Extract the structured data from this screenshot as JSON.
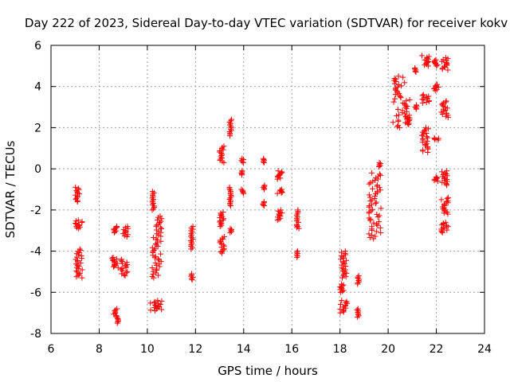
{
  "chart_data": {
    "type": "scatter",
    "title": "Day 222 of 2023, Sidereal Day-to-day VTEC variation (SDTVAR) for receiver kokv",
    "xlabel": "GPS time / hours",
    "ylabel": "SDTVAR / TECUs",
    "xlim": [
      6,
      24
    ],
    "ylim": [
      -8,
      6
    ],
    "xticks": [
      6,
      8,
      10,
      12,
      14,
      16,
      18,
      20,
      22,
      24
    ],
    "yticks": [
      -8,
      -6,
      -4,
      -2,
      0,
      2,
      4,
      6
    ],
    "grid": true,
    "marker": "+",
    "series_color": "#ff0000",
    "clusters": [
      {
        "x": [
          7.0,
          7.2
        ],
        "y": [
          -1.6,
          -0.9
        ]
      },
      {
        "x": [
          7.0,
          7.3
        ],
        "y": [
          -2.9,
          -2.5
        ]
      },
      {
        "x": [
          7.0,
          7.3
        ],
        "y": [
          -5.3,
          -3.9
        ]
      },
      {
        "x": [
          8.6,
          8.8
        ],
        "y": [
          -3.1,
          -2.8
        ]
      },
      {
        "x": [
          8.5,
          8.8
        ],
        "y": [
          -4.8,
          -4.3
        ]
      },
      {
        "x": [
          8.6,
          8.8
        ],
        "y": [
          -7.5,
          -6.8
        ]
      },
      {
        "x": [
          9.0,
          9.2
        ],
        "y": [
          -3.3,
          -2.8
        ]
      },
      {
        "x": [
          8.9,
          9.2
        ],
        "y": [
          -5.2,
          -4.4
        ]
      },
      {
        "x": [
          10.2,
          10.3
        ],
        "y": [
          -2.0,
          -1.1
        ]
      },
      {
        "x": [
          10.2,
          10.6
        ],
        "y": [
          -5.3,
          -2.3
        ]
      },
      {
        "x": [
          10.1,
          10.6
        ],
        "y": [
          -6.9,
          -6.4
        ]
      },
      {
        "x": [
          11.8,
          11.9
        ],
        "y": [
          -3.9,
          -2.8
        ]
      },
      {
        "x": [
          11.8,
          11.9
        ],
        "y": [
          -5.4,
          -5.1
        ]
      },
      {
        "x": [
          13.0,
          13.2
        ],
        "y": [
          0.3,
          1.1
        ]
      },
      {
        "x": [
          13.0,
          13.2
        ],
        "y": [
          -2.8,
          -2.1
        ]
      },
      {
        "x": [
          13.0,
          13.2
        ],
        "y": [
          -4.1,
          -3.3
        ]
      },
      {
        "x": [
          13.4,
          13.5
        ],
        "y": [
          1.6,
          2.4
        ]
      },
      {
        "x": [
          13.4,
          13.5
        ],
        "y": [
          -1.8,
          -0.9
        ]
      },
      {
        "x": [
          13.4,
          13.5
        ],
        "y": [
          -3.1,
          -2.9
        ]
      },
      {
        "x": [
          13.9,
          14.0
        ],
        "y": [
          0.3,
          0.5
        ]
      },
      {
        "x": [
          13.9,
          14.0
        ],
        "y": [
          -0.3,
          -0.1
        ]
      },
      {
        "x": [
          13.9,
          14.0
        ],
        "y": [
          -1.2,
          -1.0
        ]
      },
      {
        "x": [
          14.8,
          14.9
        ],
        "y": [
          0.3,
          0.5
        ]
      },
      {
        "x": [
          14.8,
          14.9
        ],
        "y": [
          -1.0,
          -0.8
        ]
      },
      {
        "x": [
          14.8,
          14.9
        ],
        "y": [
          -1.8,
          -1.6
        ]
      },
      {
        "x": [
          15.4,
          15.6
        ],
        "y": [
          -0.5,
          -0.1
        ]
      },
      {
        "x": [
          15.4,
          15.6
        ],
        "y": [
          -1.2,
          -1.0
        ]
      },
      {
        "x": [
          15.4,
          15.6
        ],
        "y": [
          -2.5,
          -2.0
        ]
      },
      {
        "x": [
          16.2,
          16.3
        ],
        "y": [
          -2.6,
          -2.0
        ]
      },
      {
        "x": [
          16.2,
          16.3
        ],
        "y": [
          -2.9,
          -2.7
        ]
      },
      {
        "x": [
          16.2,
          16.3
        ],
        "y": [
          -4.3,
          -4.0
        ]
      },
      {
        "x": [
          18.0,
          18.3
        ],
        "y": [
          -5.3,
          -4.0
        ]
      },
      {
        "x": [
          18.0,
          18.2
        ],
        "y": [
          -6.0,
          -5.6
        ]
      },
      {
        "x": [
          18.0,
          18.3
        ],
        "y": [
          -7.0,
          -6.4
        ]
      },
      {
        "x": [
          18.7,
          18.8
        ],
        "y": [
          -5.6,
          -5.2
        ]
      },
      {
        "x": [
          18.7,
          18.8
        ],
        "y": [
          -7.2,
          -6.8
        ]
      },
      {
        "x": [
          19.2,
          19.7
        ],
        "y": [
          -3.4,
          -0.2
        ]
      },
      {
        "x": [
          19.6,
          19.7
        ],
        "y": [
          0.1,
          0.3
        ]
      },
      {
        "x": [
          20.2,
          20.9
        ],
        "y": [
          2.0,
          4.5
        ]
      },
      {
        "x": [
          20.7,
          20.9
        ],
        "y": [
          2.2,
          2.6
        ]
      },
      {
        "x": [
          21.1,
          21.2
        ],
        "y": [
          4.7,
          4.9
        ]
      },
      {
        "x": [
          21.1,
          21.2
        ],
        "y": [
          2.9,
          3.1
        ]
      },
      {
        "x": [
          21.4,
          21.7
        ],
        "y": [
          5.0,
          5.5
        ]
      },
      {
        "x": [
          21.4,
          21.7
        ],
        "y": [
          3.2,
          3.6
        ]
      },
      {
        "x": [
          21.4,
          21.7
        ],
        "y": [
          0.8,
          2.0
        ]
      },
      {
        "x": [
          21.9,
          22.1
        ],
        "y": [
          5.0,
          5.3
        ]
      },
      {
        "x": [
          21.9,
          22.1
        ],
        "y": [
          3.8,
          4.1
        ]
      },
      {
        "x": [
          21.9,
          22.1
        ],
        "y": [
          1.4,
          1.5
        ]
      },
      {
        "x": [
          21.9,
          22.1
        ],
        "y": [
          -0.6,
          -0.4
        ]
      },
      {
        "x": [
          22.2,
          22.5
        ],
        "y": [
          4.8,
          5.4
        ]
      },
      {
        "x": [
          22.2,
          22.5
        ],
        "y": [
          2.5,
          3.3
        ]
      },
      {
        "x": [
          22.2,
          22.5
        ],
        "y": [
          -0.8,
          -0.1
        ]
      },
      {
        "x": [
          22.2,
          22.5
        ],
        "y": [
          -2.2,
          -1.4
        ]
      },
      {
        "x": [
          22.2,
          22.5
        ],
        "y": [
          -3.1,
          -2.6
        ]
      }
    ]
  }
}
